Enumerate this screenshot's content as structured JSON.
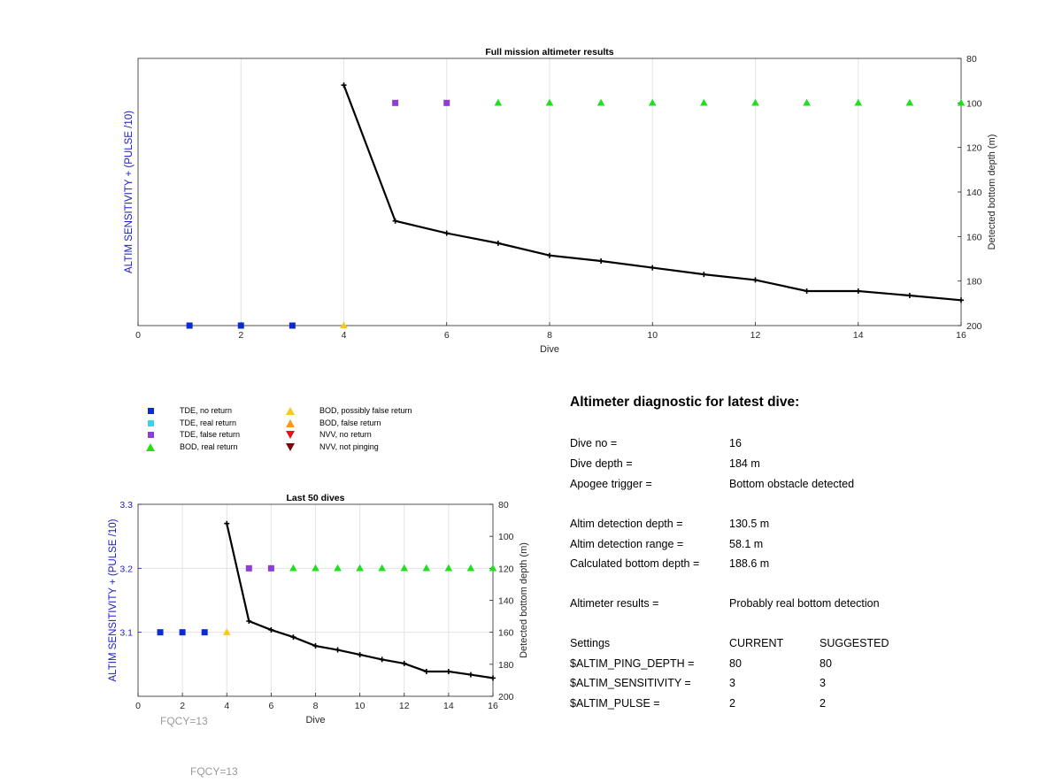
{
  "colors": {
    "tde_no_return": "#0a2bd6",
    "tde_real_return": "#36d6e6",
    "tde_false_return": "#8d3ed6",
    "bod_real_return": "#1fe01f",
    "bod_possibly_false": "#f8c81a",
    "bod_false_return": "#f59a1a",
    "nvv_no_return": "#e81414",
    "nvv_not_pinging": "#7a0a0a",
    "left_axis": "#1a1ac8",
    "line": "#000000",
    "grid": "#e3e3e3"
  },
  "chart_data": [
    {
      "type": "line",
      "title": "Full mission altimeter results",
      "xlabel": "Dive",
      "ylabel_left": "ALTIM SENSITIVITY + (PULSE /10)",
      "ylabel_right": "Detected bottom depth (m)",
      "xlim": [
        0,
        16
      ],
      "xticks": [
        0,
        2,
        4,
        6,
        8,
        10,
        12,
        14,
        16
      ],
      "ylim_right": [
        200,
        80
      ],
      "yticks_right": [
        80,
        100,
        120,
        140,
        160,
        180,
        200
      ],
      "yticks_left": [],
      "grid": "x only",
      "series": [
        {
          "axis": "right",
          "x": [
            4,
            5,
            6,
            7,
            8,
            9,
            10,
            11,
            12,
            13,
            14,
            15,
            16
          ],
          "values": [
            92,
            153,
            158.5,
            163,
            168.5,
            171,
            174,
            177,
            179.5,
            184.5,
            184.5,
            186.5,
            188.6
          ]
        }
      ],
      "markers": [
        {
          "dive": 1,
          "value": 200,
          "kind": "tde_no_return"
        },
        {
          "dive": 2,
          "value": 200,
          "kind": "tde_no_return"
        },
        {
          "dive": 3,
          "value": 200,
          "kind": "tde_no_return"
        },
        {
          "dive": 4,
          "value": 200,
          "kind": "bod_possibly_false"
        },
        {
          "dive": 5,
          "value": 100,
          "kind": "tde_false_return"
        },
        {
          "dive": 6,
          "value": 100,
          "kind": "tde_false_return"
        },
        {
          "dive": 7,
          "value": 100,
          "kind": "bod_real_return"
        },
        {
          "dive": 8,
          "value": 100,
          "kind": "bod_real_return"
        },
        {
          "dive": 9,
          "value": 100,
          "kind": "bod_real_return"
        },
        {
          "dive": 10,
          "value": 100,
          "kind": "bod_real_return"
        },
        {
          "dive": 11,
          "value": 100,
          "kind": "bod_real_return"
        },
        {
          "dive": 12,
          "value": 100,
          "kind": "bod_real_return"
        },
        {
          "dive": 13,
          "value": 100,
          "kind": "bod_real_return"
        },
        {
          "dive": 14,
          "value": 100,
          "kind": "bod_real_return"
        },
        {
          "dive": 15,
          "value": 100,
          "kind": "bod_real_return"
        },
        {
          "dive": 16,
          "value": 100,
          "kind": "bod_real_return"
        }
      ]
    },
    {
      "type": "line",
      "title": "Last 50 dives",
      "xlabel": "Dive",
      "ylabel_left": "ALTIM SENSITIVITY + (PULSE /10)",
      "ylabel_right": "Detected bottom depth (m)",
      "xlim": [
        0,
        16
      ],
      "xticks": [
        0,
        2,
        4,
        6,
        8,
        10,
        12,
        14,
        16
      ],
      "ylim_left": [
        3.0,
        3.3
      ],
      "yticks_left": [
        3.1,
        3.2,
        3.3
      ],
      "ylim_right": [
        200,
        80
      ],
      "yticks_right": [
        80,
        100,
        120,
        140,
        160,
        180,
        200
      ],
      "grid": "x and y",
      "series": [
        {
          "axis": "right",
          "x": [
            4,
            5,
            6,
            7,
            8,
            9,
            10,
            11,
            12,
            13,
            14,
            15,
            16
          ],
          "values": [
            92,
            153,
            158.5,
            163,
            168.5,
            171,
            174,
            177,
            179.5,
            184.5,
            184.5,
            186.5,
            188.6
          ]
        }
      ],
      "markers": [
        {
          "dive": 1,
          "value": 3.1,
          "kind": "tde_no_return"
        },
        {
          "dive": 2,
          "value": 3.1,
          "kind": "tde_no_return"
        },
        {
          "dive": 3,
          "value": 3.1,
          "kind": "tde_no_return"
        },
        {
          "dive": 4,
          "value": 3.1,
          "kind": "bod_possibly_false"
        },
        {
          "dive": 5,
          "value": 3.2,
          "kind": "tde_false_return"
        },
        {
          "dive": 6,
          "value": 3.2,
          "kind": "tde_false_return"
        },
        {
          "dive": 7,
          "value": 3.2,
          "kind": "bod_real_return"
        },
        {
          "dive": 8,
          "value": 3.2,
          "kind": "bod_real_return"
        },
        {
          "dive": 9,
          "value": 3.2,
          "kind": "bod_real_return"
        },
        {
          "dive": 10,
          "value": 3.2,
          "kind": "bod_real_return"
        },
        {
          "dive": 11,
          "value": 3.2,
          "kind": "bod_real_return"
        },
        {
          "dive": 12,
          "value": 3.2,
          "kind": "bod_real_return"
        },
        {
          "dive": 13,
          "value": 3.2,
          "kind": "bod_real_return"
        },
        {
          "dive": 14,
          "value": 3.2,
          "kind": "bod_real_return"
        },
        {
          "dive": 15,
          "value": 3.2,
          "kind": "bod_real_return"
        },
        {
          "dive": 16,
          "value": 3.2,
          "kind": "bod_real_return"
        }
      ]
    }
  ],
  "legend": {
    "items": [
      {
        "key": "tde_no_return",
        "label": "TDE, no return",
        "shape": "square"
      },
      {
        "key": "tde_real_return",
        "label": "TDE, real return",
        "shape": "square"
      },
      {
        "key": "tde_false_return",
        "label": "TDE, false return",
        "shape": "square"
      },
      {
        "key": "bod_real_return",
        "label": "BOD, real return",
        "shape": "triangle-up"
      },
      {
        "key": "bod_possibly_false",
        "label": "BOD, possibly false return",
        "shape": "triangle-up"
      },
      {
        "key": "bod_false_return",
        "label": "BOD, false return",
        "shape": "triangle-up"
      },
      {
        "key": "nvv_no_return",
        "label": "NVV, no return",
        "shape": "triangle-down"
      },
      {
        "key": "nvv_not_pinging",
        "label": "NVV, not pinging",
        "shape": "triangle-down"
      }
    ]
  },
  "diagnostic": {
    "title": "Altimeter diagnostic for latest dive:",
    "dive_no_label": "Dive no =",
    "dive_no_value": "16",
    "dive_depth_label": "Dive depth =",
    "dive_depth_value": "184 m",
    "apogee_label": "Apogee trigger =",
    "apogee_value": "Bottom obstacle detected",
    "altim_depth_label": "Altim detection depth =",
    "altim_depth_value": "130.5 m",
    "altim_range_label": "Altim detection range =",
    "altim_range_value": "58.1 m",
    "calc_depth_label": "Calculated bottom depth =",
    "calc_depth_value": "188.6 m",
    "results_label": "Altimeter results =",
    "results_value": "Probably real bottom detection",
    "settings_label": "Settings",
    "current_label": "CURRENT",
    "suggested_label": "SUGGESTED",
    "ping_depth_label": "$ALTIM_PING_DEPTH =",
    "ping_depth_current": "80",
    "ping_depth_suggested": "80",
    "sensitivity_label": "$ALTIM_SENSITIVITY =",
    "sensitivity_current": "3",
    "sensitivity_suggested": "3",
    "pulse_label": "$ALTIM_PULSE =",
    "pulse_current": "2",
    "pulse_suggested": "2"
  },
  "fqcy_labels": [
    "FQCY=13",
    "FQCY=13"
  ]
}
